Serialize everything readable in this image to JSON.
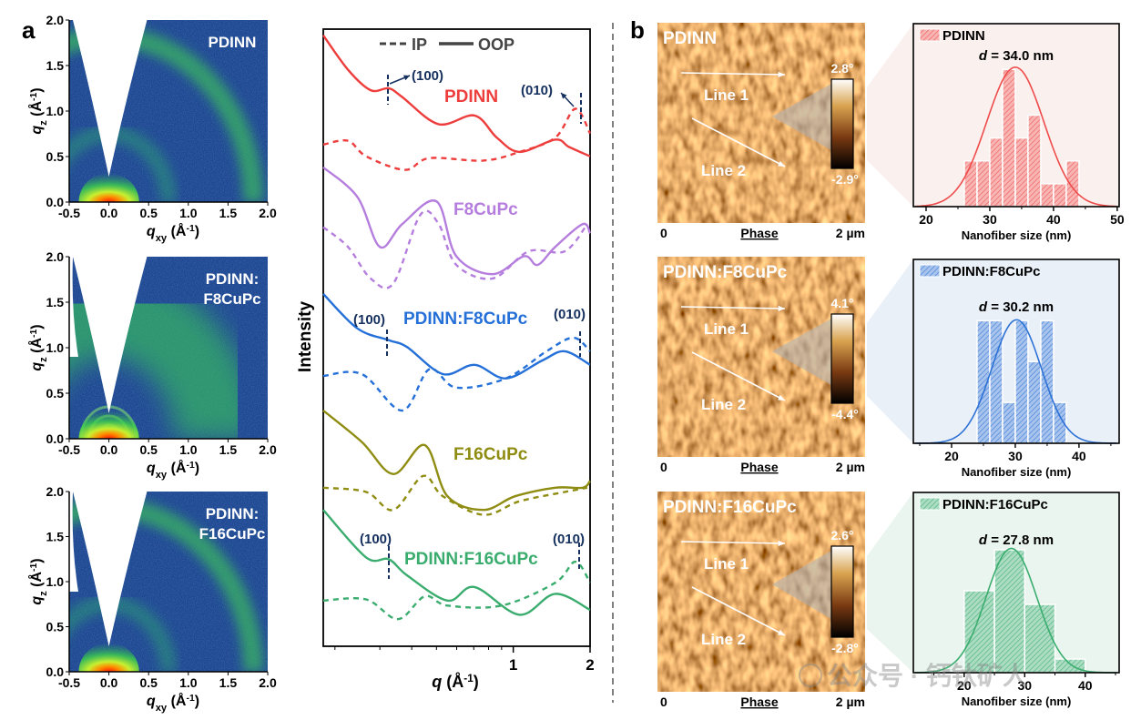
{
  "panel_labels": {
    "a": "a",
    "b": "b"
  },
  "watermark": "公众号 · 钙钛矿人",
  "chart_data": [
    {
      "type": "heatmap",
      "id": "giwaxs-pdinn",
      "title_lines": [
        "PDINN"
      ],
      "xlabel": {
        "var": "q",
        "sub": "xy",
        "unit": " (Å",
        "exp": "-1",
        "close": ")"
      },
      "ylabel": {
        "var": "q",
        "sub": "z",
        "unit": " (Å",
        "exp": "-1",
        "close": ")"
      },
      "xlim": [
        -0.5,
        2.0
      ],
      "ylim": [
        0,
        2.0
      ],
      "xticks": [
        "-0.5",
        "0.0",
        "0.5",
        "1.0",
        "1.5",
        "2.0"
      ],
      "yticks": [
        "0.0",
        "0.5",
        "1.0",
        "1.5",
        "2.0"
      ],
      "pattern": "ring"
    },
    {
      "type": "heatmap",
      "id": "giwaxs-pdinn-f8cupc",
      "title_lines": [
        "PDINN:",
        "F8CuPc"
      ],
      "xlabel": {
        "var": "q",
        "sub": "xy",
        "unit": " (Å",
        "exp": "-1",
        "close": ")"
      },
      "ylabel": {
        "var": "q",
        "sub": "z",
        "unit": " (Å",
        "exp": "-1",
        "close": ")"
      },
      "xlim": [
        -0.5,
        2.0
      ],
      "ylim": [
        0,
        2.0
      ],
      "xticks": [
        "-0.5",
        "0.0",
        "0.5",
        "1.0",
        "1.5",
        "2.0"
      ],
      "yticks": [
        "0.0",
        "0.5",
        "1.0",
        "1.5",
        "2.0"
      ],
      "pattern": "broad"
    },
    {
      "type": "heatmap",
      "id": "giwaxs-pdinn-f16cupc",
      "title_lines": [
        "PDINN:",
        "F16CuPc"
      ],
      "xlabel": {
        "var": "q",
        "sub": "xy",
        "unit": " (Å",
        "exp": "-1",
        "close": ")"
      },
      "ylabel": {
        "var": "q",
        "sub": "z",
        "unit": " (Å",
        "exp": "-1",
        "close": ")"
      },
      "xlim": [
        -0.5,
        2.0
      ],
      "ylim": [
        0,
        2.0
      ],
      "xticks": [
        "-0.5",
        "0.0",
        "0.5",
        "1.0",
        "1.5",
        "2.0"
      ],
      "yticks": [
        "0.0",
        "0.5",
        "1.0",
        "1.5",
        "2.0"
      ],
      "pattern": "ring"
    },
    {
      "type": "line",
      "id": "linecuts",
      "xlabel": {
        "var": "q",
        "unit": " (Å",
        "exp": "-1",
        "close": ")"
      },
      "ylabel": "Intensity",
      "xscale": "log",
      "xlim": [
        0.18,
        2.0
      ],
      "ylim": [
        0,
        100
      ],
      "xticks": [
        "1",
        "2"
      ],
      "minor_xticks": [
        0.2,
        0.3,
        0.4,
        0.5,
        0.6,
        0.7,
        0.8,
        0.9
      ],
      "legend": [
        {
          "label": "IP",
          "style": "dashed"
        },
        {
          "label": "OOP",
          "style": "solid"
        }
      ],
      "annotations": {
        "p100": "(100)",
        "p010": "(010)"
      },
      "series": [
        {
          "name": "PDINN",
          "color": "#ee3d3d",
          "oop": {
            "q": [
              0.18,
              0.225,
              0.276,
              0.325,
              0.367,
              0.509,
              0.705,
              0.863,
              1.058,
              1.46,
              1.655,
              2.0
            ],
            "I": [
              99,
              93.4,
              90.1,
              90.4,
              89,
              84.6,
              86,
              82.4,
              80.1,
              82.1,
              80.9,
              79.4
            ]
          },
          "ip": {
            "q": [
              0.18,
              0.225,
              0.265,
              0.376,
              0.469,
              0.764,
              1.058,
              1.46,
              1.75,
              2.0
            ],
            "I": [
              81.3,
              81.9,
              79.4,
              77.2,
              79.1,
              78.7,
              80.1,
              82.4,
              87.1,
              83.1
            ]
          }
        },
        {
          "name": "F8CuPc",
          "color": "#b57ede",
          "oop": {
            "q": [
              0.18,
              0.245,
              0.3,
              0.367,
              0.5,
              0.598,
              0.83,
              1.1,
              1.245,
              1.46,
              1.87,
              2.0
            ],
            "I": [
              77.6,
              72.8,
              64.7,
              68.4,
              72.1,
              63.2,
              60.3,
              63.2,
              61.8,
              64.7,
              68.4,
              66.9
            ]
          },
          "ip": {
            "q": [
              0.18,
              0.225,
              0.276,
              0.339,
              0.432,
              0.509,
              0.598,
              0.83,
              1.148,
              1.59,
              1.95
            ],
            "I": [
              67.9,
              64.7,
              59.6,
              58.8,
              69.9,
              68.5,
              61.8,
              59.6,
              64,
              64,
              68.4
            ]
          }
        },
        {
          "name": "PDINN:F8CuPc",
          "color": "#2470d8",
          "oop": {
            "q": [
              0.18,
              0.245,
              0.325,
              0.383,
              0.53,
              0.705,
              0.936,
              1.297,
              1.59,
              2.0
            ],
            "I": [
              57.1,
              51.5,
              49.6,
              48.5,
              44.1,
              45.6,
              43.4,
              46.3,
              47.8,
              45.6
            ]
          },
          "ip": {
            "q": [
              0.18,
              0.255,
              0.367,
              0.469,
              0.598,
              0.936,
              1.35,
              1.72,
              2.0
            ],
            "I": [
              43.8,
              44.1,
              38.2,
              44.9,
              41.9,
              43.4,
              47.8,
              50,
              47.8
            ]
          }
        },
        {
          "name": "F16CuPc",
          "color": "#8f8c12",
          "oop": {
            "q": [
              0.18,
              0.255,
              0.339,
              0.45,
              0.552,
              0.764,
              1.016,
              1.46,
              1.87,
              2.0
            ],
            "I": [
              38.2,
              33.1,
              27.9,
              32.6,
              24.3,
              22.1,
              24.3,
              25.7,
              25.7,
              26.8
            ]
          },
          "ip": {
            "q": [
              0.18,
              0.265,
              0.339,
              0.443,
              0.53,
              0.764,
              1.058,
              1.59,
              1.95
            ],
            "I": [
              25.7,
              25,
              22.1,
              27.6,
              24.3,
              21.3,
              23.5,
              25,
              25.7
            ]
          }
        },
        {
          "name": "PDINN:F16CuPc",
          "color": "#3aad6e",
          "oop": {
            "q": [
              0.18,
              0.265,
              0.325,
              0.383,
              0.552,
              0.705,
              1.058,
              1.46,
              2.0
            ],
            "I": [
              22.1,
              14.4,
              14.1,
              11.5,
              7.4,
              9.6,
              5.1,
              8.5,
              5.9
            ]
          },
          "ip": {
            "q": [
              0.18,
              0.265,
              0.353,
              0.45,
              0.552,
              0.9,
              1.46,
              1.75,
              2.0
            ],
            "I": [
              7.4,
              7.6,
              4.4,
              8.1,
              6.6,
              6.6,
              10.3,
              13.7,
              10.3
            ]
          }
        }
      ]
    },
    {
      "type": "heatmap",
      "id": "afm-pdinn",
      "title": "PDINN",
      "colorbar_max": "2.8°",
      "colorbar_min": "-2.9°",
      "scan_start": "0",
      "channel": "Phase",
      "scan_end": "2 µm",
      "line_labels": [
        "Line 1",
        "Line 2"
      ]
    },
    {
      "type": "heatmap",
      "id": "afm-pdinn-f8cupc",
      "title": "PDINN:F8CuPc",
      "colorbar_max": "4.1°",
      "colorbar_min": "-4.4°",
      "scan_start": "0",
      "channel": "Phase",
      "scan_end": "2 µm",
      "line_labels": [
        "Line 1",
        "Line 2"
      ]
    },
    {
      "type": "heatmap",
      "id": "afm-pdinn-f16cupc",
      "title": "PDINN:F16CuPc",
      "colorbar_max": "2.6°",
      "colorbar_min": "-2.8°",
      "scan_start": "0",
      "channel": "Phase",
      "scan_end": "2 µm",
      "line_labels": [
        "Line 1",
        "Line 2"
      ]
    },
    {
      "type": "bar",
      "id": "hist-pdinn",
      "legend": "PDINN",
      "color": "#ef4b4b",
      "background": "#faf0ed",
      "annotation": {
        "var": "d",
        "text": " = 34.0 nm"
      },
      "bin_edges": [
        26,
        28,
        30,
        32,
        34,
        36,
        38,
        40,
        42,
        44
      ],
      "counts": [
        2,
        2,
        3,
        6,
        3,
        4,
        1,
        1,
        2
      ],
      "fit": {
        "mean": 34.0,
        "sigma": 4.5,
        "peak": 6.1
      },
      "xlabel": "Nanofiber size (nm)",
      "xticks": [
        "20",
        "30",
        "40",
        "50"
      ],
      "xlim": [
        18,
        50.3
      ],
      "ylim": [
        0,
        8
      ]
    },
    {
      "type": "bar",
      "id": "hist-pdinn-f8cupc",
      "legend": "PDINN:F8CuPc",
      "color": "#2f72d6",
      "background": "#e9f0f8",
      "annotation": {
        "var": "d",
        "text": " = 30.2 nm"
      },
      "bin_edges": [
        24,
        26,
        28,
        30,
        32,
        34,
        36,
        38
      ],
      "counts": [
        6,
        6,
        2,
        6,
        4,
        6,
        2
      ],
      "fit": {
        "mean": 30.2,
        "sigma": 3.9,
        "peak": 6.05
      },
      "xlabel": "Nanofiber size (nm)",
      "xticks": [
        "20",
        "30",
        "40"
      ],
      "xlim": [
        14,
        46.3
      ],
      "ylim": [
        0,
        9
      ]
    },
    {
      "type": "bar",
      "id": "hist-pdinn-f16cupc",
      "legend": "PDINN:F16CuPc",
      "color": "#3aad6e",
      "background": "#eaf5ef",
      "annotation": {
        "var": "d",
        "text": " = 27.8 nm"
      },
      "bin_edges": [
        20,
        25,
        30,
        35,
        40
      ],
      "counts": [
        6,
        9,
        5,
        1
      ],
      "fit": {
        "mean": 27.8,
        "sigma": 4.2,
        "peak": 9.1
      },
      "xlabel": "Nanofiber size (nm)",
      "xticks": [
        "20",
        "30",
        "40"
      ],
      "xlim": [
        11.6,
        45.6
      ],
      "ylim": [
        0,
        13.2
      ]
    }
  ]
}
